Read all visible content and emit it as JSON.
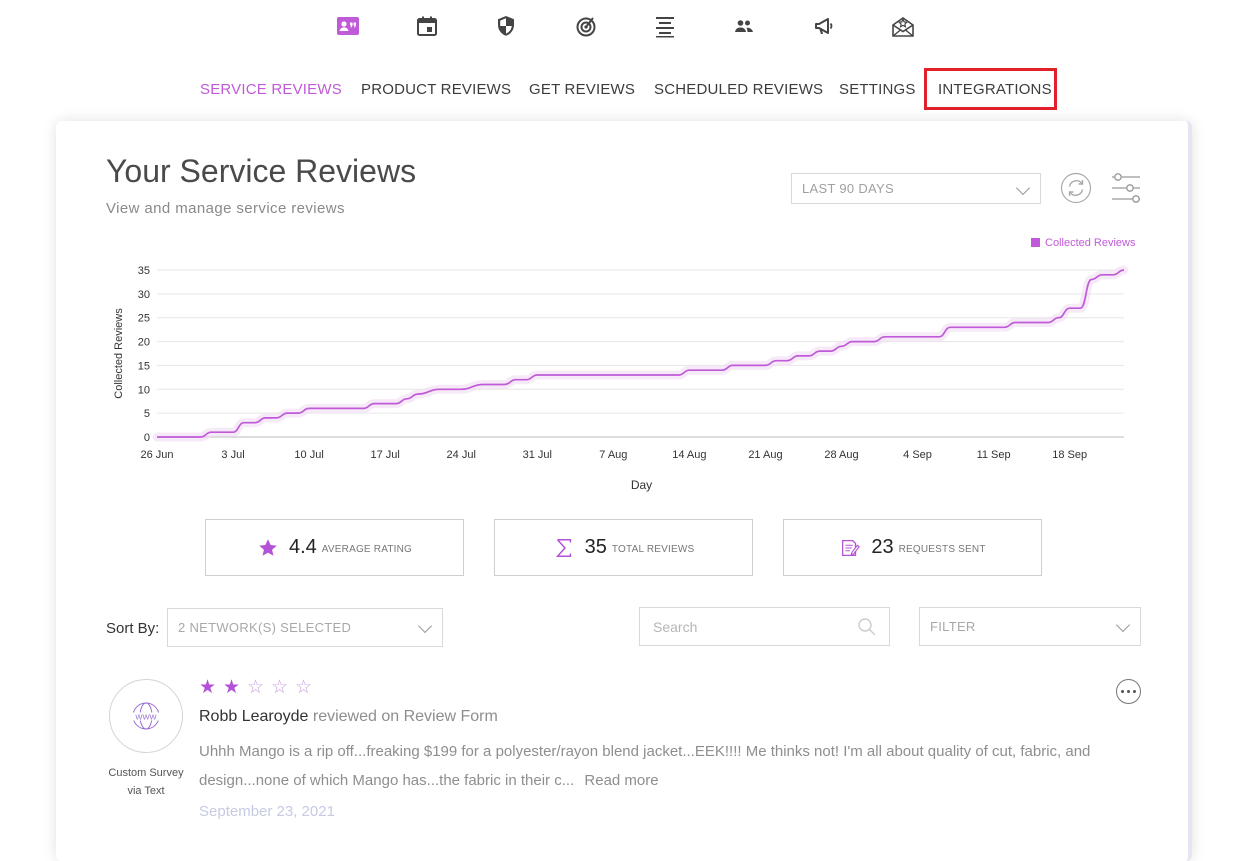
{
  "top_icons": [
    {
      "icon": "contact-card-icon",
      "active": true
    },
    {
      "icon": "calendar-icon",
      "active": false
    },
    {
      "icon": "shield-icon",
      "active": false
    },
    {
      "icon": "target-icon",
      "active": false
    },
    {
      "icon": "align-center-icon",
      "active": false
    },
    {
      "icon": "people-icon",
      "active": false
    },
    {
      "icon": "megaphone-icon",
      "active": false
    },
    {
      "icon": "mail-star-icon",
      "active": false
    }
  ],
  "nav": {
    "items": [
      {
        "label": "SERVICE REVIEWS",
        "active": true
      },
      {
        "label": "PRODUCT REVIEWS",
        "active": false
      },
      {
        "label": "GET REVIEWS",
        "active": false
      },
      {
        "label": "SCHEDULED REVIEWS",
        "active": false
      },
      {
        "label": "SETTINGS",
        "active": false
      },
      {
        "label": "INTEGRATIONS",
        "active": false,
        "highlighted": true
      }
    ]
  },
  "header": {
    "title": "Your Service Reviews",
    "subtitle": "View and manage service reviews"
  },
  "controls": {
    "date_range": "LAST 90 DAYS",
    "refresh_icon": "refresh-icon",
    "settings_icon": "sliders-icon"
  },
  "chart_data": {
    "type": "line",
    "legend": {
      "label": "Collected Reviews",
      "position": "top-right"
    },
    "xlabel": "Day",
    "ylabel": "Collected Reviews",
    "ylim": [
      0,
      35
    ],
    "yticks": [
      "0",
      "5",
      "10",
      "15",
      "20",
      "25",
      "30",
      "35"
    ],
    "xticks": [
      "26 Jun",
      "3 Jul",
      "10 Jul",
      "17 Jul",
      "24 Jul",
      "31 Jul",
      "7 Aug",
      "14 Aug",
      "21 Aug",
      "28 Aug",
      "4 Sep",
      "11 Sep",
      "18 Sep"
    ],
    "grid": true,
    "color": "#c05ad8",
    "series": [
      {
        "name": "Collected Reviews",
        "x": [
          "2021-06-26",
          "2021-06-30",
          "2021-07-01",
          "2021-07-03",
          "2021-07-04",
          "2021-07-05",
          "2021-07-06",
          "2021-07-07",
          "2021-07-08",
          "2021-07-09",
          "2021-07-10",
          "2021-07-11",
          "2021-07-12",
          "2021-07-15",
          "2021-07-16",
          "2021-07-17",
          "2021-07-18",
          "2021-07-19",
          "2021-07-20",
          "2021-07-22",
          "2021-07-23",
          "2021-07-24",
          "2021-07-26",
          "2021-07-27",
          "2021-07-28",
          "2021-07-29",
          "2021-07-30",
          "2021-07-31",
          "2021-08-01",
          "2021-08-13",
          "2021-08-14",
          "2021-08-16",
          "2021-08-17",
          "2021-08-18",
          "2021-08-20",
          "2021-08-21",
          "2021-08-22",
          "2021-08-23",
          "2021-08-24",
          "2021-08-25",
          "2021-08-26",
          "2021-08-27",
          "2021-08-28",
          "2021-08-29",
          "2021-08-30",
          "2021-08-31",
          "2021-09-01",
          "2021-09-02",
          "2021-09-06",
          "2021-09-07",
          "2021-09-12",
          "2021-09-13",
          "2021-09-15",
          "2021-09-16",
          "2021-09-17",
          "2021-09-18",
          "2021-09-19",
          "2021-09-20",
          "2021-09-21",
          "2021-09-22",
          "2021-09-23"
        ],
        "values": [
          0,
          0,
          1,
          1,
          3,
          3,
          4,
          4,
          5,
          5,
          6,
          6,
          6,
          6,
          7,
          7,
          7,
          8,
          9,
          10,
          10,
          10,
          11,
          11,
          11,
          12,
          12,
          13,
          13,
          13,
          14,
          14,
          14,
          15,
          15,
          15,
          16,
          16,
          17,
          17,
          18,
          18,
          19,
          20,
          20,
          20,
          21,
          21,
          21,
          23,
          23,
          24,
          24,
          24,
          25,
          27,
          27,
          33,
          34,
          34,
          35
        ]
      }
    ]
  },
  "stats": [
    {
      "icon": "star-icon",
      "value": "4.4",
      "label": "AVERAGE RATING"
    },
    {
      "icon": "sigma-icon",
      "value": "35",
      "label": "TOTAL REVIEWS"
    },
    {
      "icon": "request-doc-icon",
      "value": "23",
      "label": "REQUESTS SENT"
    }
  ],
  "filters": {
    "sort_by_label": "Sort By:",
    "networks": "2 NETWORK(S) SELECTED",
    "search_placeholder": "Search",
    "filter": "FILTER"
  },
  "review": {
    "rating": 2,
    "max_rating": 5,
    "source_icon": "www-globe-icon",
    "source_label_line1": "Custom Survey",
    "source_label_line2": "via Text",
    "reviewer_name": "Robb Learoyde",
    "reviewed_on": "reviewed on Review Form",
    "text": "Uhhh Mango is a rip off...freaking $199 for a polyester/rayon blend jacket...EEK!!!! Me thinks not! I'm all about quality of cut, fabric, and design...none of which Mango has...the fabric in their c...",
    "read_more": "Read more",
    "date": "September 23, 2021"
  }
}
